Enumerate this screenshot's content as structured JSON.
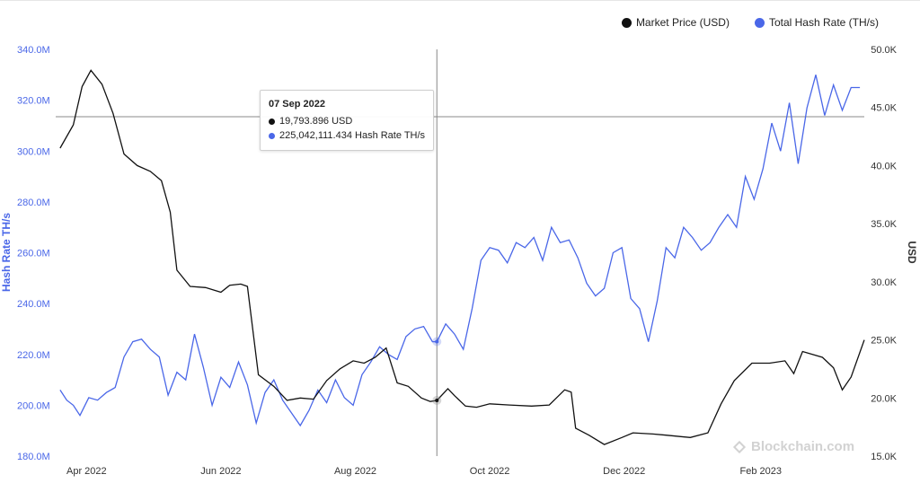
{
  "legend": {
    "price_label": "Market Price (USD)",
    "hash_label": "Total Hash Rate (TH/s)"
  },
  "colors": {
    "price": "#111111",
    "hash": "#4a67e8",
    "left_axis_text": "#4a67e8",
    "right_axis_text": "#333333",
    "crosshair": "#888888"
  },
  "tooltip": {
    "date": "07 Sep 2022",
    "price_text": "19,793.896 USD",
    "hash_text": "225,042,111.434 Hash Rate TH/s"
  },
  "watermark": "Blockchain.com",
  "chart_data": {
    "type": "line",
    "xlabel": "",
    "x_ticks": [
      "Apr 2022",
      "Jun 2022",
      "Aug 2022",
      "Oct 2022",
      "Dec 2022",
      "Feb 2023"
    ],
    "left_axis": {
      "label": "Hash Rate TH/s",
      "ticks": [
        "180.0M",
        "200.0M",
        "220.0M",
        "240.0M",
        "260.0M",
        "280.0M",
        "300.0M",
        "320.0M",
        "340.0M"
      ],
      "ylim": [
        180000000,
        340000000
      ]
    },
    "right_axis": {
      "label": "USD",
      "ticks": [
        "15.0K",
        "20.0K",
        "25.0K",
        "30.0K",
        "35.0K",
        "40.0K",
        "45.0K",
        "50.0K"
      ],
      "ylim": [
        15000,
        50000
      ]
    },
    "crosshair": {
      "x": "2022-09-07",
      "price": 19793.896,
      "hash_rate": 225042111.434
    },
    "series": [
      {
        "name": "Market Price (USD)",
        "axis": "right",
        "x": [
          "2022-03-20",
          "2022-03-26",
          "2022-03-30",
          "2022-04-03",
          "2022-04-08",
          "2022-04-13",
          "2022-04-18",
          "2022-04-24",
          "2022-04-30",
          "2022-05-05",
          "2022-05-09",
          "2022-05-12",
          "2022-05-18",
          "2022-05-25",
          "2022-06-01",
          "2022-06-05",
          "2022-06-10",
          "2022-06-13",
          "2022-06-18",
          "2022-06-25",
          "2022-07-01",
          "2022-07-07",
          "2022-07-13",
          "2022-07-19",
          "2022-07-25",
          "2022-07-31",
          "2022-08-05",
          "2022-08-10",
          "2022-08-15",
          "2022-08-20",
          "2022-08-25",
          "2022-08-31",
          "2022-09-04",
          "2022-09-07",
          "2022-09-12",
          "2022-09-15",
          "2022-09-20",
          "2022-09-25",
          "2022-10-01",
          "2022-10-10",
          "2022-10-20",
          "2022-10-28",
          "2022-11-04",
          "2022-11-07",
          "2022-11-09",
          "2022-11-15",
          "2022-11-22",
          "2022-11-30",
          "2022-12-05",
          "2022-12-14",
          "2022-12-20",
          "2022-12-31",
          "2023-01-08",
          "2023-01-14",
          "2023-01-20",
          "2023-01-28",
          "2023-02-05",
          "2023-02-12",
          "2023-02-16",
          "2023-02-20",
          "2023-03-01",
          "2023-03-06",
          "2023-03-10",
          "2023-03-14",
          "2023-03-20"
        ],
        "y": [
          41500,
          43500,
          46800,
          48200,
          47000,
          44500,
          41000,
          40000,
          39500,
          38700,
          36000,
          31000,
          29600,
          29500,
          29100,
          29700,
          29800,
          29600,
          22000,
          21000,
          19800,
          20000,
          19900,
          21500,
          22500,
          23200,
          23000,
          23500,
          24300,
          21300,
          21000,
          20000,
          19700,
          19793.896,
          20800,
          20200,
          19300,
          19200,
          19500,
          19400,
          19300,
          19400,
          20700,
          20500,
          17400,
          16800,
          16000,
          16600,
          17000,
          16900,
          16800,
          16600,
          17000,
          19500,
          21500,
          23000,
          23000,
          23200,
          22100,
          24000,
          23500,
          22600,
          20700,
          21800,
          25000
        ]
      },
      {
        "name": "Total Hash Rate (TH/s)",
        "axis": "left",
        "x": [
          "2022-03-20",
          "2022-03-23",
          "2022-03-26",
          "2022-03-29",
          "2022-04-02",
          "2022-04-06",
          "2022-04-10",
          "2022-04-14",
          "2022-04-18",
          "2022-04-22",
          "2022-04-26",
          "2022-04-30",
          "2022-05-04",
          "2022-05-08",
          "2022-05-12",
          "2022-05-16",
          "2022-05-20",
          "2022-05-24",
          "2022-05-28",
          "2022-06-01",
          "2022-06-05",
          "2022-06-09",
          "2022-06-13",
          "2022-06-17",
          "2022-06-21",
          "2022-06-25",
          "2022-06-29",
          "2022-07-03",
          "2022-07-07",
          "2022-07-11",
          "2022-07-15",
          "2022-07-19",
          "2022-07-23",
          "2022-07-27",
          "2022-07-31",
          "2022-08-04",
          "2022-08-08",
          "2022-08-12",
          "2022-08-16",
          "2022-08-20",
          "2022-08-24",
          "2022-08-28",
          "2022-09-01",
          "2022-09-05",
          "2022-09-07",
          "2022-09-11",
          "2022-09-15",
          "2022-09-19",
          "2022-09-23",
          "2022-09-27",
          "2022-10-01",
          "2022-10-05",
          "2022-10-09",
          "2022-10-13",
          "2022-10-17",
          "2022-10-21",
          "2022-10-25",
          "2022-10-29",
          "2022-11-02",
          "2022-11-06",
          "2022-11-10",
          "2022-11-14",
          "2022-11-18",
          "2022-11-22",
          "2022-11-26",
          "2022-11-30",
          "2022-12-04",
          "2022-12-08",
          "2022-12-12",
          "2022-12-16",
          "2022-12-20",
          "2022-12-24",
          "2022-12-28",
          "2023-01-01",
          "2023-01-05",
          "2023-01-09",
          "2023-01-13",
          "2023-01-17",
          "2023-01-21",
          "2023-01-25",
          "2023-01-29",
          "2023-02-02",
          "2023-02-06",
          "2023-02-10",
          "2023-02-14",
          "2023-02-18",
          "2023-02-22",
          "2023-02-26",
          "2023-03-02",
          "2023-03-06",
          "2023-03-10",
          "2023-03-14",
          "2023-03-18"
        ],
        "y": [
          206000000,
          202000000,
          200000000,
          196000000,
          203000000,
          202000000,
          205000000,
          207000000,
          219000000,
          225000000,
          226000000,
          222000000,
          219000000,
          204000000,
          213000000,
          210000000,
          228000000,
          215000000,
          200000000,
          211000000,
          207000000,
          217000000,
          208000000,
          193000000,
          205000000,
          210000000,
          202000000,
          197000000,
          192000000,
          198000000,
          206000000,
          201000000,
          210000000,
          203000000,
          200000000,
          212000000,
          217000000,
          223000000,
          220000000,
          218000000,
          227000000,
          230000000,
          231000000,
          225000000,
          225000000,
          232000000,
          228000000,
          222000000,
          238000000,
          257000000,
          262000000,
          261000000,
          256000000,
          264000000,
          262000000,
          266000000,
          257000000,
          270000000,
          264000000,
          265000000,
          258000000,
          248000000,
          243000000,
          246000000,
          260000000,
          262000000,
          242000000,
          238000000,
          225000000,
          241000000,
          262000000,
          258000000,
          270000000,
          266000000,
          261000000,
          264000000,
          270000000,
          275000000,
          270000000,
          290000000,
          281000000,
          293000000,
          311000000,
          300000000,
          319000000,
          295000000,
          317000000,
          330000000,
          314000000,
          326000000,
          316000000,
          325000000,
          325000000
        ]
      }
    ]
  }
}
